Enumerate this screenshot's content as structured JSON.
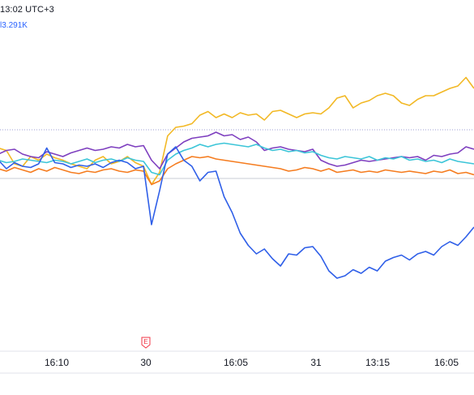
{
  "header": {
    "time_text": "13:02 UTC+3",
    "vol_label_prefix": "l",
    "vol_value": "3.291K"
  },
  "colors": {
    "gold": "#f2b824",
    "purple": "#7e3fbf",
    "cyan": "#3cc5d8",
    "orange": "#f57c1f",
    "blue": "#2f5fe8",
    "grid": "#e0e3eb",
    "ref_dotted": "#9c9fd6",
    "ref_solid": "#c9ccd6",
    "earnings": "#f23645"
  },
  "earnings_marker": {
    "label": "E",
    "position_label": "30"
  },
  "chart_data": {
    "type": "line",
    "x_ticks": [
      "16:10",
      "30",
      "16:05",
      "31",
      "13:15",
      "16:05"
    ],
    "ylim": [
      -14,
      12
    ],
    "reference_lines": [
      {
        "value": 4.0,
        "style": "dotted"
      },
      {
        "value": 0.0,
        "style": "solid"
      }
    ],
    "x_count": 60,
    "series": [
      {
        "color_key": "gold",
        "values": [
          2.5,
          2.3,
          1.2,
          1.0,
          1.8,
          1.5,
          2.0,
          1.7,
          1.5,
          1.2,
          1.0,
          0.8,
          1.5,
          1.8,
          1.2,
          1.4,
          1.8,
          1.3,
          1.0,
          -0.5,
          0.5,
          3.5,
          4.2,
          4.3,
          4.5,
          5.2,
          5.5,
          5.0,
          5.3,
          5.0,
          5.4,
          5.2,
          5.3,
          4.8,
          5.5,
          5.6,
          5.3,
          5.0,
          5.3,
          5.4,
          5.3,
          5.8,
          6.6,
          6.8,
          5.8,
          6.2,
          6.4,
          6.8,
          7.0,
          6.8,
          6.2,
          6.0,
          6.5,
          6.8,
          6.8,
          7.1,
          7.4,
          7.6,
          8.3,
          7.4
        ]
      },
      {
        "color_key": "purple",
        "values": [
          2.0,
          2.3,
          2.4,
          2.0,
          1.8,
          1.7,
          2.2,
          2.0,
          1.8,
          2.1,
          2.3,
          2.5,
          2.3,
          2.4,
          2.6,
          2.5,
          2.8,
          2.6,
          2.7,
          1.5,
          0.8,
          2.0,
          2.5,
          3.0,
          3.3,
          3.4,
          3.5,
          3.8,
          3.5,
          3.6,
          3.2,
          3.4,
          3.0,
          2.3,
          2.5,
          2.6,
          2.4,
          2.3,
          2.2,
          2.4,
          1.5,
          1.2,
          1.0,
          1.1,
          1.3,
          1.5,
          1.4,
          1.5,
          1.6,
          1.7,
          1.8,
          1.7,
          1.8,
          1.5,
          1.9,
          1.8,
          2.0,
          2.1,
          2.6,
          2.4
        ]
      },
      {
        "color_key": "cyan",
        "values": [
          1.5,
          1.3,
          1.4,
          1.6,
          1.5,
          1.4,
          1.3,
          1.5,
          1.4,
          1.2,
          1.4,
          1.6,
          1.3,
          1.5,
          1.6,
          1.4,
          1.7,
          1.5,
          1.4,
          0.5,
          0.3,
          1.5,
          2.0,
          2.3,
          2.5,
          2.8,
          2.6,
          2.8,
          2.9,
          2.8,
          2.7,
          2.6,
          2.8,
          2.5,
          2.3,
          2.4,
          2.2,
          2.3,
          2.1,
          2.2,
          1.9,
          1.7,
          1.6,
          1.8,
          1.7,
          1.6,
          1.8,
          1.5,
          1.7,
          1.6,
          1.8,
          1.5,
          1.6,
          1.4,
          1.5,
          1.3,
          1.6,
          1.4,
          1.3,
          1.2
        ]
      },
      {
        "color_key": "orange",
        "values": [
          0.8,
          0.6,
          0.9,
          0.7,
          0.5,
          0.8,
          0.6,
          0.9,
          0.7,
          0.5,
          0.4,
          0.6,
          0.5,
          0.7,
          0.8,
          0.6,
          0.5,
          0.7,
          0.6,
          -0.5,
          -0.2,
          0.8,
          1.2,
          1.5,
          1.8,
          1.7,
          1.8,
          1.6,
          1.5,
          1.4,
          1.3,
          1.2,
          1.1,
          1.0,
          0.9,
          0.8,
          0.6,
          0.7,
          0.9,
          0.8,
          0.6,
          0.8,
          0.5,
          0.6,
          0.7,
          0.5,
          0.6,
          0.5,
          0.7,
          0.6,
          0.5,
          0.6,
          0.5,
          0.4,
          0.6,
          0.5,
          0.7,
          0.4,
          0.5,
          0.3
        ]
      },
      {
        "color_key": "blue",
        "values": [
          1.5,
          0.8,
          1.3,
          1.0,
          0.9,
          1.2,
          2.5,
          1.3,
          1.2,
          0.9,
          1.1,
          1.0,
          1.2,
          0.9,
          1.3,
          1.5,
          1.3,
          0.8,
          1.0,
          -3.8,
          -1.0,
          2.0,
          2.6,
          1.5,
          1.0,
          -0.2,
          0.5,
          0.6,
          -1.5,
          -2.8,
          -4.5,
          -5.5,
          -6.2,
          -5.8,
          -6.6,
          -7.2,
          -6.2,
          -6.3,
          -5.7,
          -5.6,
          -6.4,
          -7.6,
          -8.2,
          -8.0,
          -7.5,
          -7.8,
          -7.3,
          -7.6,
          -6.8,
          -6.5,
          -6.3,
          -6.7,
          -6.2,
          -6.0,
          -6.3,
          -5.6,
          -5.2,
          -5.5,
          -4.8,
          -4.0
        ]
      }
    ]
  }
}
